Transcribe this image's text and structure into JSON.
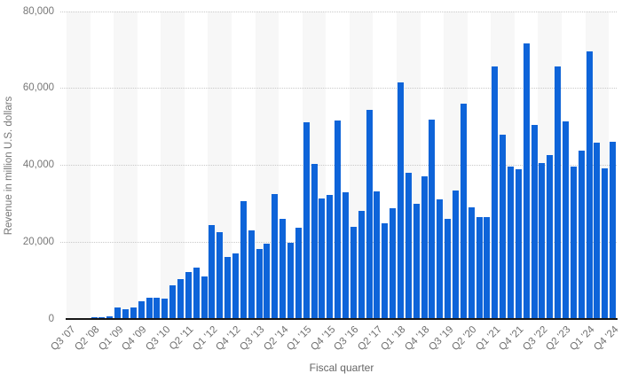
{
  "chart_data": {
    "type": "bar",
    "title": "",
    "xlabel": "Fiscal quarter",
    "ylabel": "Revenue in million U.S. dollars",
    "ylim": [
      0,
      80000
    ],
    "yticks": [
      {
        "value": 0,
        "label": "0"
      },
      {
        "value": 20000,
        "label": "20,000"
      },
      {
        "value": 40000,
        "label": "40,000"
      },
      {
        "value": 60000,
        "label": "60,000"
      },
      {
        "value": 80000,
        "label": "80,000"
      }
    ],
    "xtick_every": 3,
    "grid": "horizontal-dotted",
    "legend": "none",
    "bar_color": "#0e64d9",
    "stripe_color": "#f7f7f7",
    "categories": [
      "Q3 '07",
      "Q4 '07",
      "Q1 '08",
      "Q2 '08",
      "Q3 '08",
      "Q4 '08",
      "Q1 '09",
      "Q2 '09",
      "Q3 '09",
      "Q4 '09",
      "Q1 '10",
      "Q2 '10",
      "Q3 '10",
      "Q4 '10",
      "Q1 '11",
      "Q2 '11",
      "Q3 '11",
      "Q4 '11",
      "Q1 '12",
      "Q2 '12",
      "Q3 '12",
      "Q4 '12",
      "Q1 '13",
      "Q2 '13",
      "Q3 '13",
      "Q4 '13",
      "Q1 '14",
      "Q2 '14",
      "Q3 '14",
      "Q4 '14",
      "Q1 '15",
      "Q2 '15",
      "Q3 '15",
      "Q4 '15",
      "Q1 '16",
      "Q2 '16",
      "Q3 '16",
      "Q4 '16",
      "Q1 '17",
      "Q2 '17",
      "Q3 '17",
      "Q4 '17",
      "Q1 '18",
      "Q2 '18",
      "Q3 '18",
      "Q4 '18",
      "Q1 '19",
      "Q2 '19",
      "Q3 '19",
      "Q4 '19",
      "Q1 '20",
      "Q2 '20",
      "Q3 '20",
      "Q4 '20",
      "Q1 '21",
      "Q2 '21",
      "Q3 '21",
      "Q4 '21",
      "Q1 '22",
      "Q2 '22",
      "Q3 '22",
      "Q4 '22",
      "Q1 '23",
      "Q2 '23",
      "Q3 '23",
      "Q4 '23",
      "Q1 '24",
      "Q2 '24",
      "Q3 '24",
      "Q4 '24"
    ],
    "values": [
      5,
      118,
      241,
      378,
      419,
      806,
      2940,
      2427,
      3056,
      4606,
      5578,
      5445,
      5334,
      8822,
      10468,
      12298,
      13311,
      10980,
      24417,
      22690,
      16245,
      17126,
      30660,
      22955,
      18154,
      19510,
      32498,
      26064,
      19751,
      23678,
      51182,
      40282,
      31368,
      32209,
      51635,
      32857,
      24048,
      28160,
      54378,
      33249,
      24846,
      28846,
      61576,
      38032,
      29906,
      37185,
      51982,
      31051,
      25986,
      33362,
      55957,
      28962,
      26418,
      26444,
      65597,
      47938,
      39570,
      38868,
      71628,
      50570,
      40665,
      42626,
      65775,
      51334,
      39669,
      43805,
      69702,
      45963,
      39296,
      46222
    ]
  }
}
